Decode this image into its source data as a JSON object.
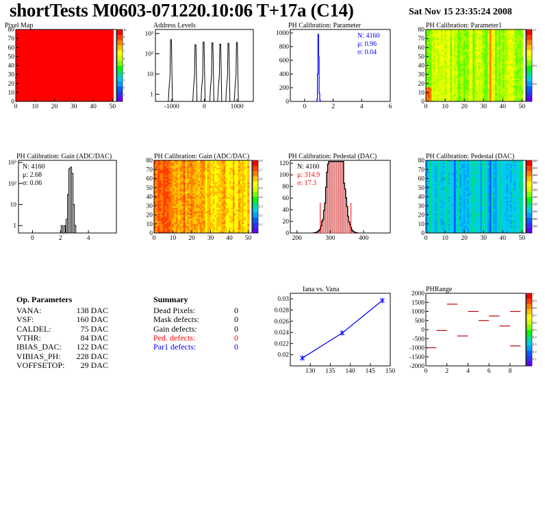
{
  "header": {
    "title": "shortTests M0603-071220.10:06 T+17a (C14)",
    "date": "Sat Nov 15 23:35:24 2008"
  },
  "colors": {
    "red": "#ff0000",
    "blue": "#0000ff",
    "black": "#000000"
  },
  "chart_data": [
    {
      "type": "heatmap",
      "title": "Pixel Map",
      "xlim": [
        0,
        52
      ],
      "ylim": [
        0,
        80
      ],
      "xticks": [
        "0",
        "10",
        "20",
        "30",
        "40",
        "50"
      ],
      "yticks": [
        "0",
        "10",
        "20",
        "30",
        "40",
        "50",
        "60",
        "70",
        "80"
      ],
      "fill": "uniform-red",
      "zlim": [
        0,
        10
      ],
      "palette_ticks": [
        "1",
        "2",
        "3",
        "4",
        "5",
        "6",
        "7",
        "8",
        "9",
        "10"
      ]
    },
    {
      "type": "bar",
      "title": "Address Levels",
      "yscale": "log",
      "xlim": [
        -1500,
        1500
      ],
      "xticks": [
        "-1000",
        "0",
        "1000"
      ],
      "yticks": [
        "1",
        "10",
        "10²",
        "10³"
      ],
      "peaks": [
        {
          "x": -1020,
          "y": 500
        },
        {
          "x": -270,
          "y": 280
        },
        {
          "x": -20,
          "y": 380
        },
        {
          "x": 250,
          "y": 350
        },
        {
          "x": 490,
          "y": 300
        },
        {
          "x": 740,
          "y": 330
        },
        {
          "x": 1000,
          "y": 360
        }
      ]
    },
    {
      "type": "bar",
      "title": "PH Calibration: Parameter",
      "xlim": [
        -1,
        6
      ],
      "ylim": [
        0,
        1050
      ],
      "xticks": [
        "0",
        "2",
        "4",
        "6"
      ],
      "yticks": [
        "0",
        "200",
        "400",
        "600",
        "800",
        "1000"
      ],
      "bins": [
        {
          "x": 0.88,
          "y": 30
        },
        {
          "x": 0.92,
          "y": 400
        },
        {
          "x": 0.96,
          "y": 980
        },
        {
          "x": 1.0,
          "y": 650
        },
        {
          "x": 1.04,
          "y": 120
        },
        {
          "x": 1.08,
          "y": 20
        }
      ],
      "stats": {
        "n": "N: 4160",
        "mean": "μ: 0.96",
        "sigma": "σ: 0.04"
      }
    },
    {
      "type": "heatmap",
      "title": "PH Calibration: Parameter1",
      "xlim": [
        0,
        52
      ],
      "ylim": [
        0,
        80
      ],
      "xticks": [
        "0",
        "10",
        "20",
        "30",
        "40",
        "50"
      ],
      "yticks": [
        "0",
        "10",
        "20",
        "30",
        "40",
        "50",
        "60",
        "70",
        "80"
      ],
      "fill": "yellow-green-columns",
      "zlim": [
        0.7,
        1.1
      ],
      "palette_ticks": [
        "0.8",
        "0.9",
        "1",
        "1.1"
      ]
    },
    {
      "type": "bar",
      "title": "PH Calibration: Gain (ADC/DAC)",
      "yscale": "log",
      "xlim": [
        -1,
        6
      ],
      "xticks": [
        "0",
        "2",
        "4"
      ],
      "yticks": [
        "1",
        "10",
        "10²",
        "10³"
      ],
      "bins": [
        {
          "x": 2.1,
          "y": 1
        },
        {
          "x": 2.3,
          "y": 1
        },
        {
          "x": 2.45,
          "y": 2
        },
        {
          "x": 2.55,
          "y": 30
        },
        {
          "x": 2.65,
          "y": 500
        },
        {
          "x": 2.75,
          "y": 600
        },
        {
          "x": 2.85,
          "y": 300
        },
        {
          "x": 2.95,
          "y": 10
        },
        {
          "x": 3.05,
          "y": 1
        }
      ],
      "stats": {
        "n": "N: 4160",
        "mean": "μ: 2.68",
        "sigma": "σ: 0.06"
      }
    },
    {
      "type": "heatmap",
      "title": "PH Calibration: Gain (ADC/DAC)",
      "xlim": [
        0,
        52
      ],
      "ylim": [
        0,
        80
      ],
      "xticks": [
        "0",
        "10",
        "20",
        "30",
        "40",
        "50"
      ],
      "yticks": [
        "0",
        "10",
        "20",
        "30",
        "40",
        "50",
        "60",
        "70",
        "80"
      ],
      "fill": "orange-red-columns",
      "zlim": [
        2,
        2.8
      ],
      "palette_ticks": [
        "2.1",
        "2.2",
        "2.3",
        "2.4",
        "2.5",
        "2.6",
        "2.7",
        "2.8"
      ]
    },
    {
      "type": "bar",
      "title": "PH Calibration: Pedestal (DAC)",
      "xlim": [
        180,
        480
      ],
      "ylim": [
        0,
        125
      ],
      "xticks": [
        "200",
        "300",
        "400"
      ],
      "yticks": [
        "0",
        "20",
        "40",
        "60",
        "80",
        "100",
        "120"
      ],
      "cut_lines": [
        270,
        362
      ],
      "stats": {
        "n": "N: 4160",
        "mean": "μ: 314.9",
        "sigma": "σ: 17.3"
      }
    },
    {
      "type": "heatmap",
      "title": "PH Calibration: Pedestal (DAC)",
      "xlim": [
        0,
        52
      ],
      "ylim": [
        0,
        80
      ],
      "xticks": [
        "0",
        "10",
        "20",
        "30",
        "40",
        "50"
      ],
      "yticks": [
        "0",
        "10",
        "20",
        "30",
        "40",
        "50",
        "60",
        "70",
        "80"
      ],
      "fill": "cyan-green-columns",
      "zlim": [
        240,
        440
      ],
      "palette_ticks": [
        "260",
        "280",
        "300",
        "320",
        "340",
        "360",
        "380",
        "400",
        "420",
        "440"
      ]
    },
    {
      "type": "line",
      "title": "Iana vs. Vana",
      "xlim": [
        125,
        150
      ],
      "ylim": [
        0.018,
        0.031
      ],
      "xticks": [
        "130",
        "135",
        "140",
        "145",
        "150"
      ],
      "yticks": [
        "0.02",
        "0.022",
        "0.024",
        "0.026",
        "0.028",
        "0.03"
      ],
      "x": [
        128,
        138,
        148
      ],
      "y": [
        0.0194,
        0.0239,
        0.0297
      ]
    },
    {
      "type": "heatmap",
      "title": "PHRange",
      "xlim": [
        0,
        9.5
      ],
      "ylim": [
        -2000,
        2000
      ],
      "xticks": [
        "0",
        "2",
        "4",
        "6",
        "8"
      ],
      "yticks": [
        "-2000",
        "-1500",
        "-1000",
        "-500",
        "0",
        "500",
        "1000",
        "1500",
        "2000"
      ],
      "segments": [
        {
          "x0": 0,
          "x1": 1,
          "y": -1000
        },
        {
          "x0": 1,
          "x1": 2,
          "y": -50
        },
        {
          "x0": 2,
          "x1": 3,
          "y": 1400
        },
        {
          "x0": 3,
          "x1": 4,
          "y": -350
        },
        {
          "x0": 4,
          "x1": 5,
          "y": 1000
        },
        {
          "x0": 5,
          "x1": 6,
          "y": 500
        },
        {
          "x0": 6,
          "x1": 7,
          "y": 750
        },
        {
          "x0": 7,
          "x1": 8,
          "y": 200
        },
        {
          "x0": 8,
          "x1": 9,
          "y": -900
        },
        {
          "x0": 8,
          "x1": 9,
          "y": 1000
        }
      ],
      "zlim": [
        0,
        1
      ],
      "palette_ticks": [
        "0.1",
        "0.2",
        "0.3",
        "0.4",
        "0.5",
        "0.6",
        "0.7",
        "0.8",
        "0.9",
        "1"
      ]
    }
  ],
  "op_parameters": {
    "heading": "Op. Parameters",
    "rows": [
      {
        "name": "VANA:",
        "value": "138 DAC"
      },
      {
        "name": "VSF:",
        "value": "160 DAC"
      },
      {
        "name": "CALDEL:",
        "value": "75 DAC"
      },
      {
        "name": "VTHR:",
        "value": "84 DAC"
      },
      {
        "name": "IBIAS_DAC:",
        "value": "122 DAC"
      },
      {
        "name": "VIBIAS_PH:",
        "value": "228 DAC"
      },
      {
        "name": "VOFFSETOP:",
        "value": "29 DAC"
      }
    ]
  },
  "summary": {
    "heading": "Summary",
    "rows": [
      {
        "name": "Dead Pixels:",
        "value": "0",
        "color": "#000000"
      },
      {
        "name": "Mask defects:",
        "value": "0",
        "color": "#000000"
      },
      {
        "name": "Gain defects:",
        "value": "0",
        "color": "#000000"
      },
      {
        "name": "Ped. defects:",
        "value": "0",
        "color": "#ff0000"
      },
      {
        "name": "Par1 defects:",
        "value": "0",
        "color": "#0000ff"
      }
    ]
  }
}
